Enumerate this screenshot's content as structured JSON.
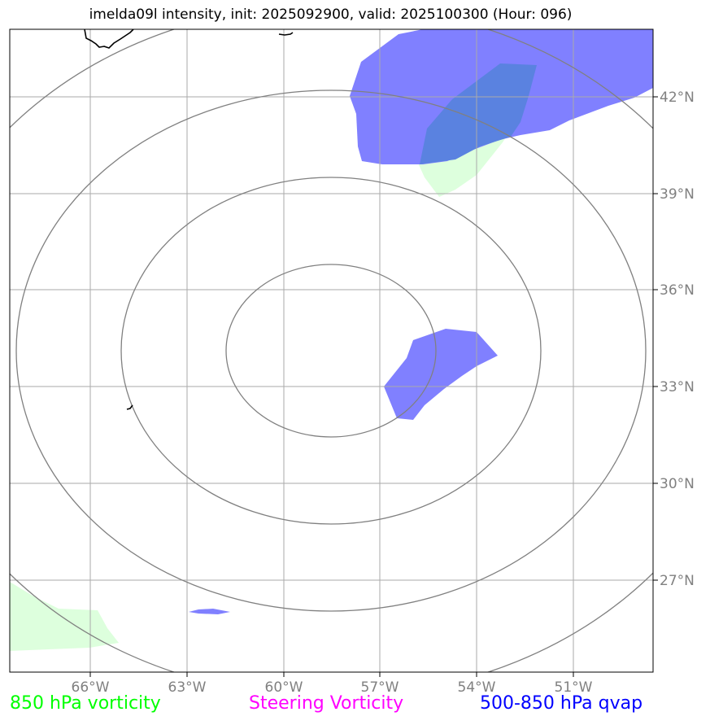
{
  "title": "imelda09l intensity, init: 2025092900, valid: 2025100300 (Hour: 096)",
  "colors": {
    "vorticity_850": "#00ff00",
    "steering_vorticity": "#ff00ff",
    "qvap": "#0000ff",
    "vorticity_fill": "#ddffdd",
    "qvap_fill": "#8080ff",
    "overlap_fill": "#5a82e0",
    "grid": "#aaaaaa",
    "contour": "#808080",
    "coast": "#000000"
  },
  "axes": {
    "lon_ticks": [
      "66°W",
      "63°W",
      "60°W",
      "57°W",
      "54°W",
      "51°W"
    ],
    "lat_ticks": [
      "42°N",
      "39°N",
      "36°N",
      "33°N",
      "30°N",
      "27°N"
    ]
  },
  "legend": {
    "vorticity_850": "850 hPa vorticity",
    "steering_vorticity": "Steering Vorticity",
    "qvap": "500-850 hPa qvap"
  }
}
